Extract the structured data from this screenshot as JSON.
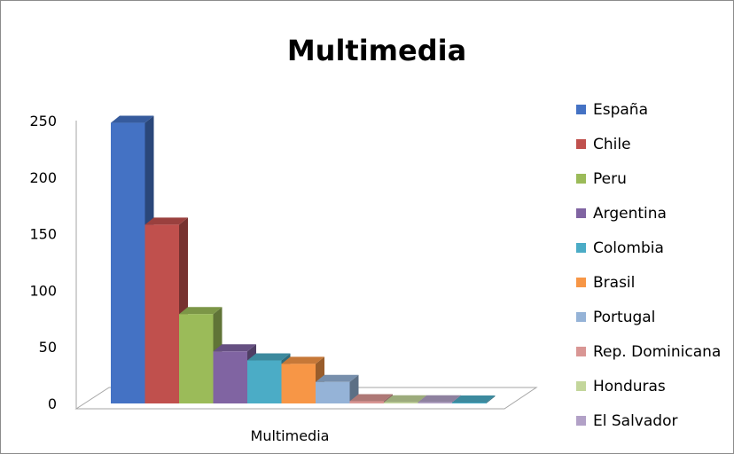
{
  "chart_data": {
    "type": "bar",
    "title": "Multimedia",
    "categories": [
      "Multimedia"
    ],
    "ylim": [
      0,
      250
    ],
    "yticks": [
      0,
      50,
      100,
      150,
      200,
      250
    ],
    "grid": false,
    "legend_position": "right",
    "series": [
      {
        "name": "España",
        "values": [
          248
        ],
        "color": "#4472C4"
      },
      {
        "name": "Chile",
        "values": [
          158
        ],
        "color": "#C0504D"
      },
      {
        "name": "Peru",
        "values": [
          79
        ],
        "color": "#9BBB59"
      },
      {
        "name": "Argentina",
        "values": [
          46
        ],
        "color": "#8064A2"
      },
      {
        "name": "Colombia",
        "values": [
          38
        ],
        "color": "#4BACC6"
      },
      {
        "name": "Brasil",
        "values": [
          35
        ],
        "color": "#F79646"
      },
      {
        "name": "Portugal",
        "values": [
          19
        ],
        "color": "#95B3D7"
      },
      {
        "name": "Rep. Dominicana",
        "values": [
          2
        ],
        "color": "#D99694"
      },
      {
        "name": "Honduras",
        "values": [
          1
        ],
        "color": "#C3D69B"
      },
      {
        "name": "El Salvador",
        "values": [
          1
        ],
        "color": "#B2A1C7"
      },
      {
        "name": "",
        "values": [
          0
        ],
        "color": "#4BACC6"
      }
    ]
  }
}
